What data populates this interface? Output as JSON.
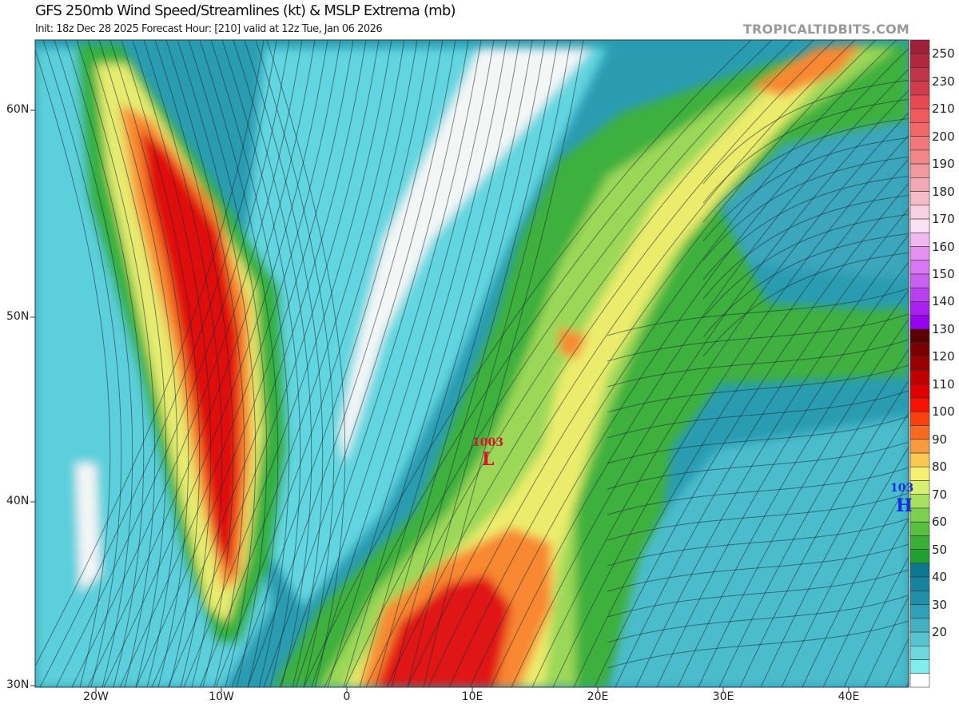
{
  "header": {
    "title": "GFS 250mb Wind Speed/Streamlines (kt) & MSLP Extrema (mb)",
    "subtitle": "Init: 18z Dec 28 2025   Forecast Hour: [210]   valid at 12z Tue, Jan 06 2026",
    "brand": "TROPICALTIDBITS.COM"
  },
  "map": {
    "lat_labels": [
      "60N",
      "50N",
      "40N",
      "30N"
    ],
    "lon_labels": [
      "20W",
      "10W",
      "0",
      "10E",
      "20E",
      "30E",
      "40E"
    ],
    "extrema": [
      {
        "type": "L",
        "value": "1003",
        "color": "#e0102a"
      },
      {
        "type": "H",
        "value": "103",
        "color": "#1030e0"
      }
    ]
  },
  "colorbar": {
    "unit": "kt",
    "labels": [
      "250",
      "230",
      "210",
      "200",
      "190",
      "180",
      "170",
      "160",
      "150",
      "140",
      "130",
      "120",
      "110",
      "100",
      "90",
      "80",
      "70",
      "60",
      "50",
      "40",
      "30",
      "20"
    ],
    "colors": [
      "#a0203a",
      "#b02840",
      "#c03448",
      "#d03c4c",
      "#e84850",
      "#f05a5a",
      "#f06868",
      "#f07878",
      "#f08888",
      "#f09aa0",
      "#f0aab4",
      "#f4bcc8",
      "#f8d0e0",
      "#fce0f4",
      "#f0b8f0",
      "#e490f0",
      "#d878f0",
      "#c860f0",
      "#b840f0",
      "#a820f0",
      "#9800f0",
      "#5a0000",
      "#7a0000",
      "#9a0000",
      "#c00000",
      "#e00000",
      "#f81000",
      "#f84010",
      "#f86a20",
      "#f89a40",
      "#f8c850",
      "#f8f070",
      "#d8f070",
      "#a8e060",
      "#7cd050",
      "#58c040",
      "#38b038",
      "#20a030",
      "#0a7890",
      "#1484a0",
      "#2090a8",
      "#30a0b8",
      "#44b0c4",
      "#58c4d0",
      "#6cd8dc",
      "#80ecec",
      "#ffffff"
    ]
  }
}
